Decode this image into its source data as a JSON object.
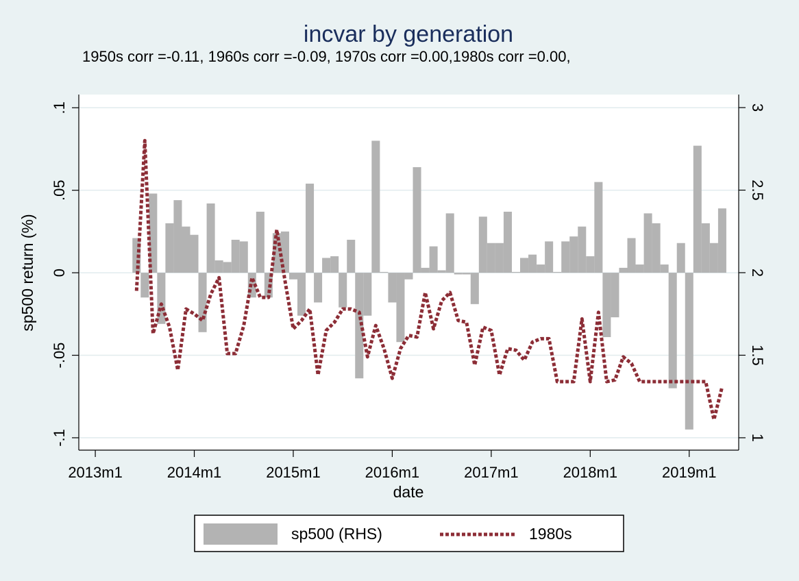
{
  "chart_data": {
    "type": "combo",
    "title": "incvar by generation",
    "subtitle": "1950s corr =-0.11, 1960s corr =-0.09, 1970s corr =0.00,1980s corr =0.00,",
    "x_label": "date",
    "y_label": "sp500 return (%)",
    "x": [
      "2013m6",
      "2013m7",
      "2013m8",
      "2013m9",
      "2013m10",
      "2013m11",
      "2013m12",
      "2014m1",
      "2014m2",
      "2014m3",
      "2014m4",
      "2014m5",
      "2014m6",
      "2014m7",
      "2014m8",
      "2014m9",
      "2014m10",
      "2014m11",
      "2014m12",
      "2015m1",
      "2015m2",
      "2015m3",
      "2015m4",
      "2015m5",
      "2015m6",
      "2015m7",
      "2015m8",
      "2015m9",
      "2015m10",
      "2015m11",
      "2015m12",
      "2016m1",
      "2016m2",
      "2016m3",
      "2016m4",
      "2016m5",
      "2016m6",
      "2016m7",
      "2016m8",
      "2016m9",
      "2016m10",
      "2016m11",
      "2016m12",
      "2017m1",
      "2017m2",
      "2017m3",
      "2017m4",
      "2017m5",
      "2017m6",
      "2017m7",
      "2017m8",
      "2017m9",
      "2017m10",
      "2017m11",
      "2017m12",
      "2018m1",
      "2018m2",
      "2018m3",
      "2018m4",
      "2018m5",
      "2018m6",
      "2018m7",
      "2018m8",
      "2018m9",
      "2018m10",
      "2018m11",
      "2018m12",
      "2019m1",
      "2019m2",
      "2019m3",
      "2019m4",
      "2019m5"
    ],
    "series": [
      {
        "name": "sp500 (RHS)",
        "type": "bar",
        "color": "#b3b3b3",
        "values": [
          0.021,
          -0.015,
          0.048,
          -0.031,
          0.03,
          0.044,
          0.028,
          0.023,
          -0.036,
          0.042,
          0.0075,
          0.0065,
          0.02,
          0.019,
          -0.015,
          0.037,
          -0.015,
          0.024,
          0.025,
          -0.004,
          -0.026,
          0.054,
          -0.018,
          0.009,
          0.01,
          -0.021,
          0.02,
          -0.064,
          -0.026,
          0.08,
          0.0005,
          -0.018,
          -0.042,
          -0.004,
          0.064,
          0.003,
          0.016,
          0.0015,
          0.036,
          -0.001,
          -0.001,
          -0.019,
          0.034,
          0.018,
          0.018,
          0.037,
          0.0005,
          0.009,
          0.011,
          0.005,
          0.019,
          0.0005,
          0.019,
          0.022,
          0.028,
          0.01,
          0.055,
          -0.039,
          -0.027,
          0.003,
          0.021,
          0.005,
          0.036,
          0.03,
          0.005,
          -0.07,
          0.018,
          -0.095,
          0.077,
          0.03,
          0.018,
          0.039
        ]
      },
      {
        "name": "1980s",
        "type": "line",
        "axis": "y2",
        "color": "#8c2d36",
        "values": [
          1.89,
          2.8,
          1.63,
          1.81,
          1.67,
          1.41,
          1.78,
          1.75,
          1.71,
          1.87,
          1.97,
          1.51,
          1.51,
          1.68,
          1.97,
          1.85,
          1.85,
          2.26,
          1.95,
          1.66,
          1.71,
          1.78,
          1.38,
          1.65,
          1.7,
          1.78,
          1.78,
          1.76,
          1.49,
          1.68,
          1.54,
          1.36,
          1.54,
          1.62,
          1.61,
          1.88,
          1.66,
          1.83,
          1.88,
          1.71,
          1.7,
          1.44,
          1.67,
          1.65,
          1.38,
          1.54,
          1.53,
          1.47,
          1.58,
          1.6,
          1.6,
          1.34,
          1.34,
          1.34,
          1.72,
          1.34,
          1.76,
          1.34,
          1.35,
          1.49,
          1.45,
          1.34,
          1.34,
          1.34,
          1.34,
          1.34,
          1.34,
          1.34,
          1.34,
          1.34,
          1.11,
          1.31
        ]
      }
    ],
    "xlim": [
      "2012m11",
      "2019m7"
    ],
    "xticks": [
      "2013m1",
      "2014m1",
      "2015m1",
      "2016m1",
      "2017m1",
      "2018m1",
      "2019m1"
    ],
    "ylim": [
      -0.1075,
      0.108
    ],
    "yticks": [
      {
        "value": -0.1,
        "label": "-.1"
      },
      {
        "value": -0.05,
        "label": "-.05"
      },
      0,
      {
        "value": 0.05,
        "label": ".05"
      },
      {
        "value": 0.1,
        "label": ".1"
      }
    ],
    "y2lim": [
      0.925,
      3.079
    ],
    "y2ticks": [
      1,
      1.5,
      2,
      2.5,
      3
    ],
    "grid": true
  }
}
